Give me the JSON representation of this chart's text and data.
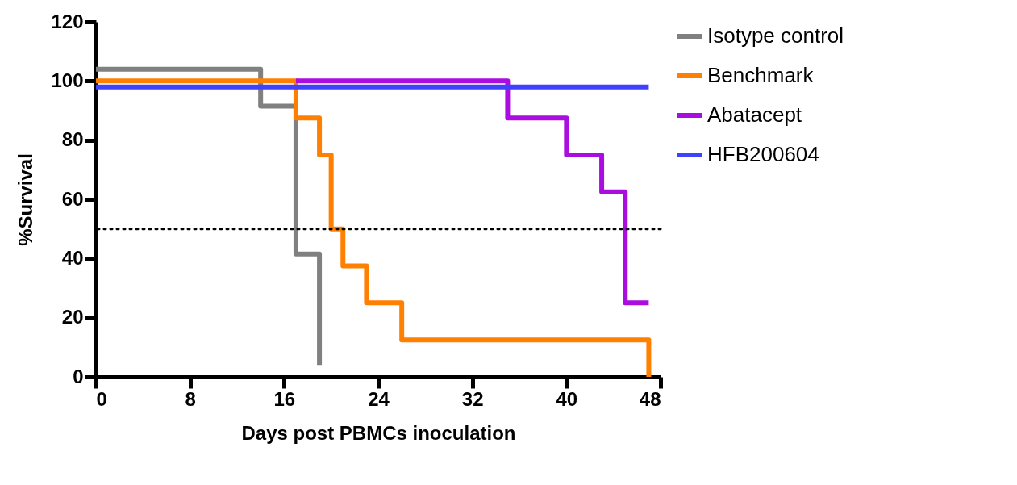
{
  "chart_data": {
    "type": "step",
    "xlabel": "Days post PBMCs inoculation",
    "ylabel": "%Survival",
    "xlim": [
      0,
      48
    ],
    "xticks": [
      0,
      8,
      16,
      24,
      32,
      40,
      48
    ],
    "ylim": [
      0,
      120
    ],
    "yticks": [
      0,
      20,
      40,
      60,
      80,
      100,
      120
    ],
    "grid": false,
    "legend": "right",
    "marker": "none",
    "line_style": "solid",
    "series": [
      {
        "name": "Isotype control",
        "color": "#808080",
        "x": [
          0,
          14,
          17,
          19
        ],
        "values": [
          104,
          91.5,
          41.5,
          4
        ]
      },
      {
        "name": "Benchmark",
        "color": "#ff8000",
        "x": [
          0,
          17,
          19,
          20,
          21,
          23,
          26,
          47
        ],
        "values": [
          100,
          87.5,
          75,
          50,
          37.5,
          25,
          12.5,
          0
        ]
      },
      {
        "name": "Abatacept",
        "color": "#aa0ddf",
        "x": [
          17,
          35,
          40,
          43,
          45,
          47
        ],
        "values": [
          100,
          87.5,
          75,
          62.5,
          25,
          25
        ]
      },
      {
        "name": "HFB200604",
        "color": "#4040ff",
        "x": [
          0,
          47
        ],
        "values": [
          98,
          98
        ]
      }
    ],
    "ref_lines": [
      {
        "axis": "y",
        "value": 50,
        "label": null,
        "color": "#000000",
        "line_style": "dotted"
      }
    ]
  }
}
